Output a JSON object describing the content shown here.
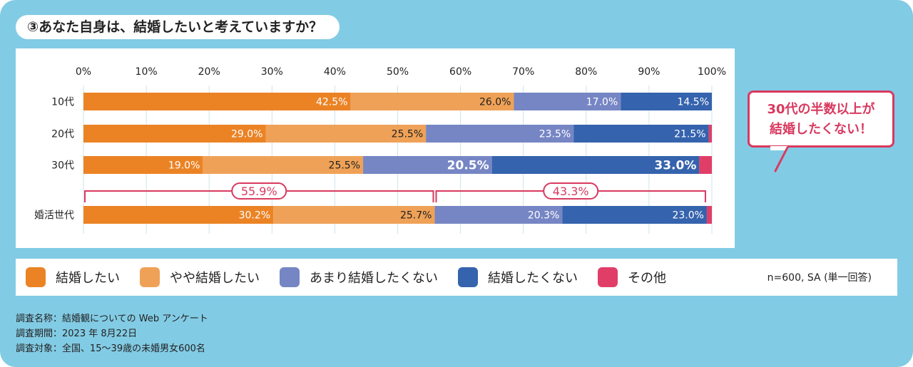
{
  "title": "③あなた自身は、結婚したいと考えていますか？",
  "callout": {
    "line1": "30代の半数以上が",
    "line2": "結婚したくない！"
  },
  "legend_note": "n=600, SA (単一回答)",
  "notes": [
    "調査名称：結婚観についての Web アンケート",
    "調査期間：2023 年 8月22日",
    "調査対象：全国、15～39歳の未婚男女600名"
  ],
  "chart_data": {
    "type": "bar",
    "orientation": "horizontal-stacked",
    "xlim": [
      0,
      100
    ],
    "x_ticks": [
      "0%",
      "10%",
      "20%",
      "30%",
      "40%",
      "50%",
      "60%",
      "70%",
      "80%",
      "90%",
      "100%"
    ],
    "categories": [
      "10代",
      "20代",
      "30代",
      "婚活世代"
    ],
    "series": [
      {
        "name": "結婚したい",
        "color": "#eb8325",
        "values": [
          42.5,
          29.0,
          19.0,
          30.2
        ]
      },
      {
        "name": "やや結婚したい",
        "color": "#efa257",
        "values": [
          26.0,
          25.5,
          25.5,
          25.7
        ]
      },
      {
        "name": "あまり結婚したくない",
        "color": "#7686c4",
        "values": [
          17.0,
          23.5,
          20.5,
          20.3
        ]
      },
      {
        "name": "結婚したくない",
        "color": "#3563ad",
        "values": [
          14.5,
          21.5,
          33.0,
          23.0
        ]
      },
      {
        "name": "その他",
        "color": "#e13e67",
        "values": [
          0,
          0.5,
          2.0,
          0.8
        ]
      }
    ],
    "brackets": [
      {
        "category": "婚活世代",
        "label": "55.9%",
        "from": 0,
        "to": 55.9
      },
      {
        "category": "婚活世代",
        "label": "43.3%",
        "from": 55.9,
        "to": 99.2
      }
    ]
  }
}
